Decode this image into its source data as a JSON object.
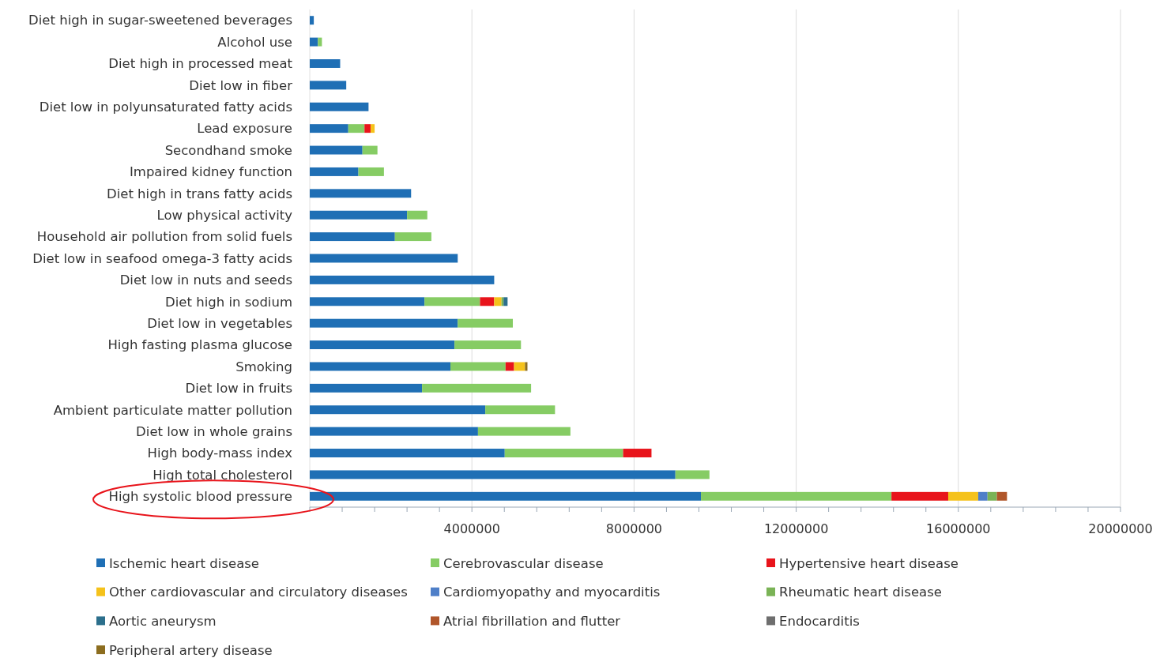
{
  "chart_data": {
    "type": "bar",
    "orientation": "horizontal",
    "stacked": true,
    "grid": "x",
    "legend": "bottom",
    "categories": [
      "Diet high in sugar-sweetened beverages",
      "Alcohol use",
      "Diet high in processed meat",
      "Diet low in fiber",
      "Diet low in polyunsaturated fatty acids",
      "Lead exposure",
      "Secondhand smoke",
      "Impaired kidney function",
      "Diet high in trans fatty acids",
      "Low physical activity",
      "Household air pollution from solid fuels",
      "Diet low in seafood omega-3 fatty acids",
      "Diet low in nuts and seeds",
      "Diet high in sodium",
      "Diet low in vegetables",
      "High fasting plasma glucose",
      "Smoking",
      "Diet low in fruits",
      "Ambient particulate matter pollution",
      "Diet low in whole grains",
      "High body-mass index",
      "High total cholesterol",
      "High systolic blood pressure"
    ],
    "xlim": [
      0,
      20000000
    ],
    "xticks": [
      {
        "value": 0,
        "label": null
      },
      {
        "value": 800000,
        "label": null
      },
      {
        "value": 1600000,
        "label": null
      },
      {
        "value": 2400000,
        "label": null
      },
      {
        "value": 3200000,
        "label": null
      },
      4000000,
      {
        "value": 4800000,
        "label": null
      },
      {
        "value": 5600000,
        "label": null
      },
      {
        "value": 6400000,
        "label": null
      },
      {
        "value": 7200000,
        "label": null
      },
      8000000,
      {
        "value": 8800000,
        "label": null
      },
      {
        "value": 9600000,
        "label": null
      },
      {
        "value": 10400000,
        "label": null
      },
      {
        "value": 11200000,
        "label": null
      },
      12000000,
      {
        "value": 12800000,
        "label": null
      },
      {
        "value": 13600000,
        "label": null
      },
      {
        "value": 14400000,
        "label": null
      },
      {
        "value": 15200000,
        "label": null
      },
      16000000,
      {
        "value": 16800000,
        "label": null
      },
      {
        "value": 17600000,
        "label": null
      },
      {
        "value": 18400000,
        "label": null
      },
      {
        "value": 19200000,
        "label": null
      },
      20000000
    ],
    "series": [
      {
        "name": "Ischemic heart disease",
        "color": "#1f6fb5",
        "values": [
          100000,
          200000,
          750000,
          900000,
          1450000,
          950000,
          1300000,
          1200000,
          2500000,
          2400000,
          2100000,
          3650000,
          4550000,
          2830000,
          3650000,
          3570000,
          3470000,
          2770000,
          4330000,
          4150000,
          4810000,
          9020000,
          9650000
        ]
      },
      {
        "name": "Cerebrovascular disease",
        "color": "#86cc64",
        "values": [
          null,
          100000,
          null,
          null,
          null,
          400000,
          370000,
          630000,
          null,
          500000,
          900000,
          null,
          null,
          1370000,
          1360000,
          1640000,
          1360000,
          2690000,
          1720000,
          2280000,
          2920000,
          840000,
          4700000
        ]
      },
      {
        "name": "Hypertensive heart disease",
        "color": "#e8141b",
        "values": [
          null,
          null,
          null,
          null,
          null,
          150000,
          null,
          null,
          null,
          null,
          null,
          null,
          null,
          350000,
          null,
          null,
          210000,
          null,
          null,
          null,
          700000,
          null,
          1400000
        ]
      },
      {
        "name": "Other cardiovascular and circulatory diseases",
        "color": "#f5c21b",
        "values": [
          null,
          null,
          null,
          null,
          null,
          100000,
          null,
          null,
          null,
          null,
          null,
          null,
          null,
          180000,
          null,
          null,
          270000,
          null,
          null,
          null,
          null,
          null,
          740000
        ]
      },
      {
        "name": "Cardiomyopathy and myocarditis",
        "color": "#4f7fc8",
        "values": [
          null,
          null,
          null,
          null,
          null,
          null,
          null,
          null,
          null,
          null,
          null,
          null,
          null,
          null,
          null,
          null,
          null,
          null,
          null,
          null,
          null,
          null,
          230000
        ]
      },
      {
        "name": "Rheumatic heart disease",
        "color": "#7ab356",
        "values": [
          null,
          null,
          null,
          null,
          null,
          null,
          null,
          null,
          null,
          null,
          null,
          null,
          null,
          50000,
          null,
          null,
          null,
          null,
          null,
          null,
          null,
          null,
          230000
        ]
      },
      {
        "name": "Aortic aneurysm",
        "color": "#2c6f8c",
        "values": [
          null,
          null,
          null,
          null,
          null,
          null,
          null,
          null,
          null,
          null,
          null,
          null,
          null,
          100000,
          null,
          null,
          null,
          null,
          null,
          null,
          null,
          null,
          null
        ]
      },
      {
        "name": "Atrial fibrillation and flutter",
        "color": "#b0562a",
        "values": [
          null,
          null,
          null,
          null,
          null,
          null,
          null,
          null,
          null,
          null,
          null,
          null,
          null,
          null,
          null,
          null,
          null,
          null,
          null,
          null,
          null,
          null,
          250000
        ]
      },
      {
        "name": "Endocarditis",
        "color": "#6e6e6e",
        "values": [
          null,
          null,
          null,
          null,
          null,
          null,
          null,
          null,
          null,
          null,
          null,
          null,
          null,
          null,
          null,
          null,
          null,
          null,
          null,
          null,
          null,
          null,
          null
        ]
      },
      {
        "name": "Peripheral artery disease",
        "color": "#8c6d1f",
        "values": [
          null,
          null,
          null,
          null,
          null,
          null,
          null,
          null,
          null,
          null,
          null,
          null,
          null,
          null,
          null,
          null,
          60000,
          null,
          null,
          null,
          null,
          null,
          null
        ]
      }
    ]
  }
}
